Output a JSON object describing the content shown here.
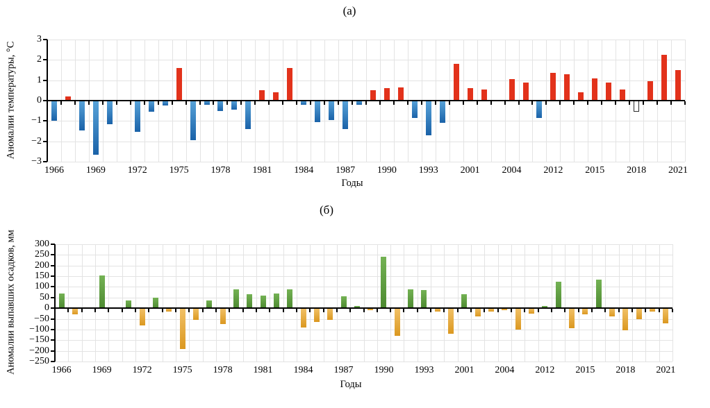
{
  "chart_data": [
    {
      "type": "bar",
      "title": "(а)",
      "ylabel": "Аномалии температуры, °С",
      "xlabel": "Годы",
      "ylim": [
        -3,
        3
      ],
      "ytick_step": 1,
      "x_label_every": 3,
      "grid": true,
      "legend": "none",
      "colors": {
        "positive": "#e2321b",
        "negative_gradient": [
          "#58a3d9",
          "#1a62a8"
        ],
        "outline_border": "#2b2b2b",
        "grid": "#e3e3e3",
        "axis": "#000000"
      },
      "bars": [
        {
          "x": "1966",
          "v": -1.0
        },
        {
          "x": "1967",
          "v": 0.2
        },
        {
          "x": "1968",
          "v": -1.45
        },
        {
          "x": "1969",
          "v": -2.65
        },
        {
          "x": "1970",
          "v": -1.15
        },
        {
          "x": "1971",
          "v": 0
        },
        {
          "x": "1972",
          "v": -1.55
        },
        {
          "x": "1973",
          "v": -0.55
        },
        {
          "x": "1974",
          "v": -0.25
        },
        {
          "x": "1975",
          "v": 1.6
        },
        {
          "x": "1976",
          "v": -1.95
        },
        {
          "x": "1977",
          "v": -0.2
        },
        {
          "x": "1978",
          "v": -0.5
        },
        {
          "x": "1979",
          "v": -0.45
        },
        {
          "x": "1980",
          "v": -1.4
        },
        {
          "x": "1981",
          "v": 0.5
        },
        {
          "x": "1982",
          "v": 0.4
        },
        {
          "x": "1983",
          "v": 1.6
        },
        {
          "x": "1984",
          "v": -0.2
        },
        {
          "x": "1985",
          "v": -1.05
        },
        {
          "x": "1986",
          "v": -0.95
        },
        {
          "x": "1987",
          "v": -1.4
        },
        {
          "x": "1988",
          "v": -0.2
        },
        {
          "x": "1989",
          "v": 0.5
        },
        {
          "x": "1990",
          "v": 0.6
        },
        {
          "x": "1991",
          "v": 0.65
        },
        {
          "x": "1992",
          "v": -0.85
        },
        {
          "x": "1993",
          "v": -1.7
        },
        {
          "x": "",
          "v": -1.1
        },
        {
          "x": "",
          "v": 1.8
        },
        {
          "x": "2001",
          "v": 0.6
        },
        {
          "x": "2002",
          "v": 0.55
        },
        {
          "x": "2003",
          "v": 0.05
        },
        {
          "x": "2004",
          "v": 1.05
        },
        {
          "x": "",
          "v": 0.9
        },
        {
          "x": "",
          "v": -0.85
        },
        {
          "x": "2012",
          "v": 1.35
        },
        {
          "x": "2013",
          "v": 1.3
        },
        {
          "x": "2014",
          "v": 0.4
        },
        {
          "x": "2015",
          "v": 1.1
        },
        {
          "x": "2016",
          "v": 0.9
        },
        {
          "x": "2017",
          "v": 0.55
        },
        {
          "x": "2018",
          "v": -0.55,
          "style": "outline"
        },
        {
          "x": "2019",
          "v": 0.95
        },
        {
          "x": "2020",
          "v": 2.25
        },
        {
          "x": "2021",
          "v": 1.5
        }
      ]
    },
    {
      "type": "bar",
      "title": "(б)",
      "ylabel": "Аномалии выпавших осадков, мм",
      "xlabel": "Годы",
      "ylim": [
        -250,
        300
      ],
      "ytick_step": 50,
      "x_label_every": 3,
      "grid": true,
      "legend": "none",
      "colors": {
        "positive_gradient": [
          "#74b254",
          "#4d8a31"
        ],
        "negative_gradient": [
          "#f1c167",
          "#db9820"
        ],
        "grid": "#e3e3e3",
        "axis": "#000000"
      },
      "bars": [
        {
          "x": "1966",
          "v": 70
        },
        {
          "x": "1967",
          "v": -30
        },
        {
          "x": "1968",
          "v": 0
        },
        {
          "x": "1969",
          "v": 155
        },
        {
          "x": "1970",
          "v": 0
        },
        {
          "x": "1971",
          "v": 35
        },
        {
          "x": "1972",
          "v": -80
        },
        {
          "x": "1973",
          "v": 50
        },
        {
          "x": "1974",
          "v": -15
        },
        {
          "x": "1975",
          "v": -190
        },
        {
          "x": "1976",
          "v": -55
        },
        {
          "x": "1977",
          "v": 35
        },
        {
          "x": "1978",
          "v": -75
        },
        {
          "x": "1979",
          "v": 90
        },
        {
          "x": "1980",
          "v": 65
        },
        {
          "x": "1981",
          "v": 60
        },
        {
          "x": "1982",
          "v": 70
        },
        {
          "x": "1983",
          "v": 90
        },
        {
          "x": "1984",
          "v": -90
        },
        {
          "x": "1985",
          "v": -65
        },
        {
          "x": "1986",
          "v": -55
        },
        {
          "x": "1987",
          "v": 55
        },
        {
          "x": "1988",
          "v": 10
        },
        {
          "x": "1989",
          "v": -10
        },
        {
          "x": "1990",
          "v": 240
        },
        {
          "x": "1991",
          "v": -130
        },
        {
          "x": "1992",
          "v": 90
        },
        {
          "x": "1993",
          "v": 85
        },
        {
          "x": "",
          "v": -15
        },
        {
          "x": "",
          "v": -120
        },
        {
          "x": "2001",
          "v": 65
        },
        {
          "x": "2002",
          "v": -40
        },
        {
          "x": "2003",
          "v": -15
        },
        {
          "x": "2004",
          "v": -10
        },
        {
          "x": "",
          "v": -100
        },
        {
          "x": "",
          "v": -25
        },
        {
          "x": "2012",
          "v": 10
        },
        {
          "x": "2013",
          "v": 125
        },
        {
          "x": "2014",
          "v": -95
        },
        {
          "x": "2015",
          "v": -30
        },
        {
          "x": "2016",
          "v": 135
        },
        {
          "x": "2017",
          "v": -40
        },
        {
          "x": "2018",
          "v": -105
        },
        {
          "x": "2019",
          "v": -50
        },
        {
          "x": "2020",
          "v": -15
        },
        {
          "x": "2021",
          "v": -70
        }
      ]
    }
  ]
}
